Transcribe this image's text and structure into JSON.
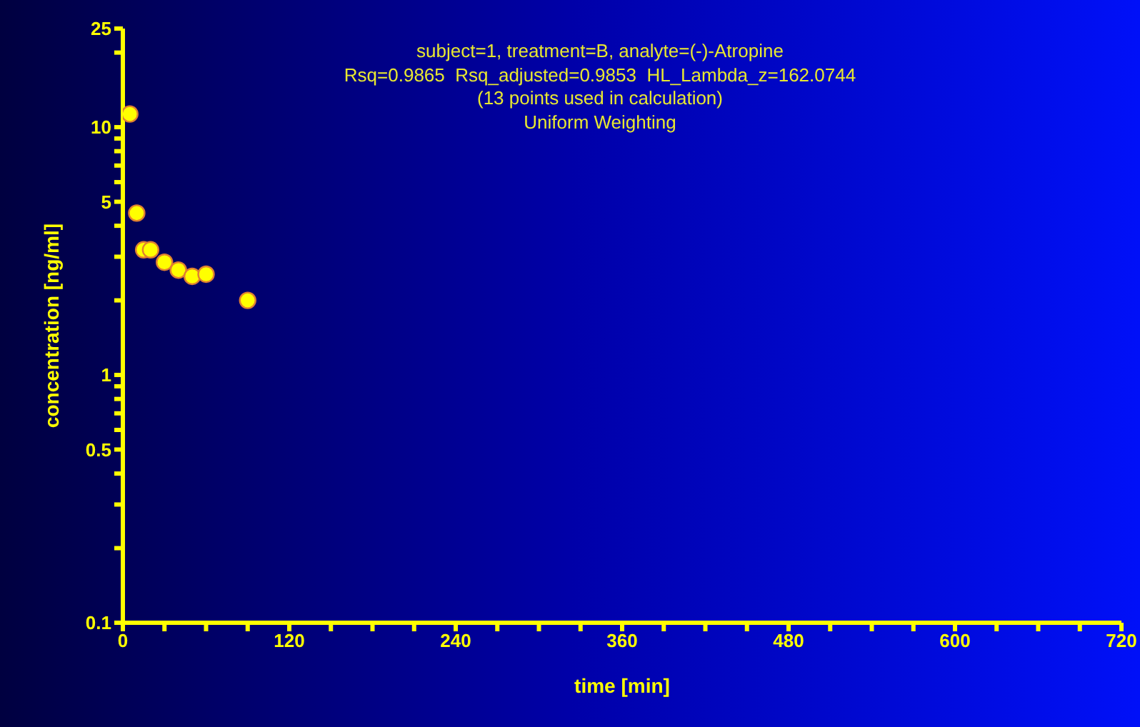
{
  "chart_data": {
    "type": "scatter",
    "title": "subject=1, treatment=B, analyte=(-)-Atropine",
    "subtitle": "Rsq=0.9865  Rsq_adjusted=0.9853  HL_Lambda_z=162.0744",
    "annotations": [
      "(13 points used in calculation)",
      "Uniform Weighting"
    ],
    "xlabel": "time [min]",
    "ylabel": "concentration [ng/ml]",
    "x": [
      5,
      10,
      15,
      20,
      30,
      40,
      50,
      60,
      90
    ],
    "series": [
      {
        "color": "#ffff00",
        "values": [
          11.3,
          4.5,
          3.2,
          3.2,
          2.85,
          2.65,
          2.5,
          2.55,
          2.0
        ]
      }
    ],
    "marker": "circle",
    "log": "y",
    "grid": false,
    "legend": false,
    "xlim": [
      0,
      720
    ],
    "xticks": [
      0,
      {
        "value": 30,
        "label": null
      },
      {
        "value": 60,
        "label": null
      },
      {
        "value": 90,
        "label": null
      },
      120,
      {
        "value": 150,
        "label": null
      },
      {
        "value": 180,
        "label": null
      },
      {
        "value": 210,
        "label": null
      },
      240,
      {
        "value": 270,
        "label": null
      },
      {
        "value": 300,
        "label": null
      },
      {
        "value": 330,
        "label": null
      },
      360,
      {
        "value": 390,
        "label": null
      },
      {
        "value": 420,
        "label": null
      },
      {
        "value": 450,
        "label": null
      },
      480,
      {
        "value": 510,
        "label": null
      },
      {
        "value": 540,
        "label": null
      },
      {
        "value": 570,
        "label": null
      },
      600,
      {
        "value": 630,
        "label": null
      },
      {
        "value": 660,
        "label": null
      },
      {
        "value": 690,
        "label": null
      },
      720
    ],
    "ylim": [
      0.1,
      25
    ],
    "yticks": [
      0.1,
      {
        "value": 0.2,
        "label": null
      },
      {
        "value": 0.3,
        "label": null
      },
      {
        "value": 0.4,
        "label": null
      },
      0.5,
      {
        "value": 0.6,
        "label": null
      },
      {
        "value": 0.7,
        "label": null
      },
      {
        "value": 0.8,
        "label": null
      },
      {
        "value": 0.9,
        "label": null
      },
      1,
      {
        "value": 2,
        "label": null
      },
      {
        "value": 3,
        "label": null
      },
      {
        "value": 4,
        "label": null
      },
      5,
      {
        "value": 6,
        "label": null
      },
      {
        "value": 7,
        "label": null
      },
      {
        "value": 8,
        "label": null
      },
      {
        "value": 9,
        "label": null
      },
      10,
      {
        "value": 20,
        "label": null
      },
      25
    ]
  }
}
